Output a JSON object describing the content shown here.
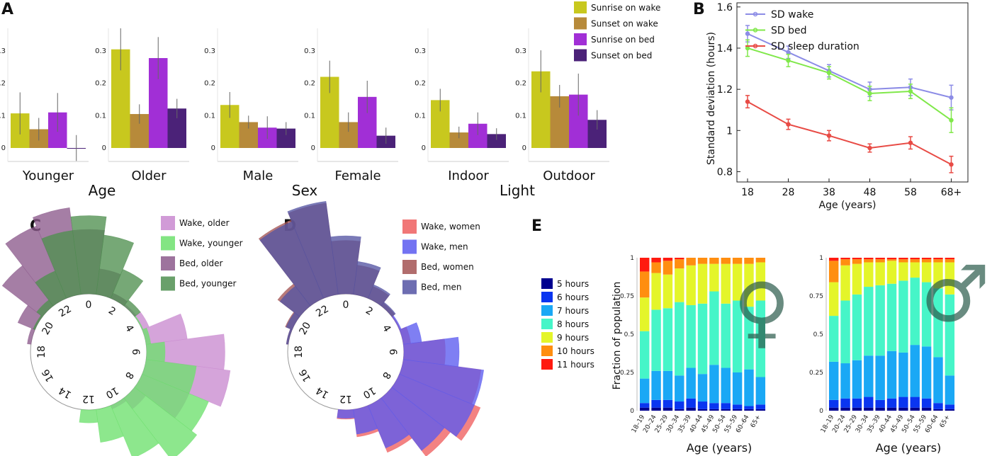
{
  "panels": {
    "A": {
      "label": "A",
      "chart_data": {
        "type": "bar",
        "yticks": [
          "0",
          "0.1",
          "0.2",
          "0.3"
        ],
        "ylim": [
          0,
          0.37
        ],
        "series_names": [
          "Sunrise on wake",
          "Sunset on wake",
          "Sunrise on bed",
          "Sunset on bed"
        ],
        "colors": [
          "#c8c81e",
          "#b78a3a",
          "#a12fd6",
          "#4b2278"
        ],
        "groups": [
          {
            "name": "Age",
            "categories": [
              {
                "label": "Younger",
                "values": [
                  0.107,
                  0.058,
                  0.11,
                  0.0
                ],
                "err": [
                  0.065,
                  0.035,
                  0.06,
                  0.04
                ]
              },
              {
                "label": "Older",
                "values": [
                  0.305,
                  0.105,
                  0.278,
                  0.122
                ],
                "err": [
                  0.065,
                  0.03,
                  0.065,
                  0.03
                ]
              }
            ]
          },
          {
            "name": "Sex",
            "categories": [
              {
                "label": "Male",
                "values": [
                  0.133,
                  0.08,
                  0.063,
                  0.06
                ],
                "err": [
                  0.04,
                  0.02,
                  0.035,
                  0.02
                ]
              },
              {
                "label": "Female",
                "values": [
                  0.22,
                  0.08,
                  0.158,
                  0.038
                ],
                "err": [
                  0.05,
                  0.03,
                  0.05,
                  0.025
                ]
              }
            ]
          },
          {
            "name": "Light",
            "categories": [
              {
                "label": "Indoor",
                "values": [
                  0.148,
                  0.048,
                  0.075,
                  0.043
                ],
                "err": [
                  0.035,
                  0.018,
                  0.035,
                  0.018
                ]
              },
              {
                "label": "Outdoor",
                "values": [
                  0.237,
                  0.16,
                  0.165,
                  0.087
                ],
                "err": [
                  0.065,
                  0.035,
                  0.065,
                  0.03
                ]
              }
            ]
          }
        ]
      }
    },
    "B": {
      "label": "B",
      "chart_data": {
        "type": "line",
        "x": [
          "18",
          "28",
          "38",
          "48",
          "58",
          "68+"
        ],
        "xlabel": "Age (years)",
        "ylabel": "Standard deviation  (hours)",
        "yticks": [
          "0.8",
          "1",
          "1.2",
          "1.4",
          "1.6"
        ],
        "ylim": [
          0.75,
          1.62
        ],
        "series": [
          {
            "name": "SD wake",
            "color": "#8c8ce6",
            "values": [
              1.47,
              1.38,
              1.29,
              1.2,
              1.21,
              1.16
            ],
            "err": [
              0.04,
              0.03,
              0.03,
              0.035,
              0.04,
              0.06
            ]
          },
          {
            "name": "SD bed",
            "color": "#80e84a",
            "values": [
              1.4,
              1.34,
              1.28,
              1.18,
              1.19,
              1.05
            ],
            "err": [
              0.04,
              0.03,
              0.03,
              0.035,
              0.035,
              0.06
            ]
          },
          {
            "name": "SD sleep duration",
            "color": "#e84b45",
            "values": [
              1.14,
              1.03,
              0.975,
              0.915,
              0.94,
              0.835
            ],
            "err": [
              0.03,
              0.025,
              0.025,
              0.02,
              0.03,
              0.04
            ]
          }
        ]
      }
    },
    "C": {
      "label": "C",
      "chart_data": {
        "type": "polar-histogram",
        "hour_labels": [
          "0",
          "2",
          "4",
          "6",
          "8",
          "10",
          "12",
          "14",
          "16",
          "18",
          "20",
          "22"
        ],
        "series": [
          {
            "name": "Wake, older",
            "color": "#c98ad0",
            "fill": "#c98ad0",
            "hours": [
              3,
              4,
              5,
              6,
              7,
              8,
              9,
              10
            ],
            "values": [
              0.02,
              0.08,
              0.45,
              0.85,
              0.92,
              0.55,
              0.15,
              0.04
            ]
          },
          {
            "name": "Wake, younger",
            "color": "#6de06d",
            "fill": "#6de06d",
            "hours": [
              4,
              5,
              6,
              7,
              8,
              9,
              10,
              11,
              12
            ],
            "values": [
              0.01,
              0.05,
              0.2,
              0.55,
              0.78,
              0.85,
              0.62,
              0.36,
              0.14
            ]
          },
          {
            "name": "Bed, older",
            "color": "#8c5a8c",
            "fill": "#8c5a8c",
            "hours": [
              19,
              20,
              21,
              22,
              23,
              0,
              1,
              2
            ],
            "values": [
              0.04,
              0.2,
              0.55,
              0.85,
              0.95,
              0.7,
              0.28,
              0.06
            ]
          },
          {
            "name": "Bed, younger",
            "color": "#4f8f50",
            "fill": "#4f8f50",
            "hours": [
              20,
              21,
              22,
              23,
              0,
              1,
              2,
              3
            ],
            "values": [
              0.02,
              0.08,
              0.32,
              0.7,
              0.85,
              0.65,
              0.34,
              0.08
            ]
          }
        ]
      }
    },
    "D": {
      "label": "D",
      "chart_data": {
        "type": "polar-histogram",
        "hour_labels": [
          "0",
          "2",
          "4",
          "6",
          "8",
          "10",
          "12",
          "14",
          "16",
          "18",
          "20",
          "22"
        ],
        "series": [
          {
            "name": "Wake, women",
            "color": "#ef5f5f",
            "fill": "#ef5f5f",
            "hours": [
              4,
              5,
              6,
              7,
              8,
              9,
              10,
              11,
              12
            ],
            "values": [
              0.01,
              0.08,
              0.45,
              0.85,
              0.95,
              0.8,
              0.55,
              0.3,
              0.1
            ]
          },
          {
            "name": "Wake, men",
            "color": "#5b5bf0",
            "fill": "#5b5bf0",
            "hours": [
              4,
              5,
              6,
              7,
              8,
              9,
              10,
              11,
              12
            ],
            "values": [
              0.02,
              0.2,
              0.6,
              0.88,
              0.88,
              0.72,
              0.5,
              0.27,
              0.09
            ]
          },
          {
            "name": "Bed, women",
            "color": "#a35454",
            "fill": "#a35454",
            "hours": [
              19,
              20,
              21,
              22,
              23,
              0,
              1,
              2,
              3
            ],
            "values": [
              0.02,
              0.08,
              0.3,
              0.92,
              1.0,
              0.58,
              0.32,
              0.14,
              0.04
            ]
          },
          {
            "name": "Bed, men",
            "color": "#5454a3",
            "fill": "#5454a3",
            "hours": [
              19,
              20,
              21,
              22,
              23,
              0,
              1,
              2,
              3
            ],
            "values": [
              0.02,
              0.07,
              0.27,
              0.9,
              1.02,
              0.63,
              0.36,
              0.16,
              0.05
            ]
          }
        ],
        "overlap_color": "#3a2a78"
      }
    },
    "E": {
      "label": "E",
      "chart_data": {
        "type": "stacked-bar",
        "categories": [
          "18–19",
          "20–24",
          "25–29",
          "30–34",
          "35–39",
          "40–44",
          "45–49",
          "50–54",
          "55–59",
          "60–64",
          "65+"
        ],
        "yticks": [
          "0",
          "0.25",
          "0.5",
          "0.75",
          "1"
        ],
        "ylabel": "Fraction of population",
        "xlabel": "Age (years)",
        "legend": [
          "5 hours",
          "6 hours",
          "7 hours",
          "8 hours",
          "9 hours",
          "10 hours",
          "11 hours"
        ],
        "colors": [
          "#00008f",
          "#0a35f0",
          "#1aa8f5",
          "#46f5c8",
          "#e4f52a",
          "#ff8e10",
          "#ff1a10"
        ],
        "charts": [
          {
            "name": "women",
            "symbol": "♀",
            "data": [
              [
                0.02,
                0.03,
                0.16,
                0.31,
                0.22,
                0.17,
                0.09
              ],
              [
                0.02,
                0.05,
                0.19,
                0.4,
                0.24,
                0.07,
                0.03
              ],
              [
                0.02,
                0.05,
                0.19,
                0.41,
                0.22,
                0.09,
                0.02
              ],
              [
                0.01,
                0.05,
                0.17,
                0.48,
                0.22,
                0.06,
                0.01
              ],
              [
                0.02,
                0.06,
                0.2,
                0.41,
                0.26,
                0.05,
                0.0
              ],
              [
                0.01,
                0.05,
                0.18,
                0.46,
                0.26,
                0.04,
                0.0
              ],
              [
                0.01,
                0.04,
                0.25,
                0.48,
                0.18,
                0.04,
                0.0
              ],
              [
                0.01,
                0.04,
                0.23,
                0.42,
                0.26,
                0.04,
                0.0
              ],
              [
                0.01,
                0.03,
                0.21,
                0.47,
                0.24,
                0.04,
                0.0
              ],
              [
                0.01,
                0.02,
                0.24,
                0.41,
                0.28,
                0.04,
                0.0
              ],
              [
                0.01,
                0.03,
                0.18,
                0.5,
                0.25,
                0.03,
                0.0
              ]
            ]
          },
          {
            "name": "men",
            "symbol": "♂",
            "data": [
              [
                0.02,
                0.05,
                0.25,
                0.3,
                0.22,
                0.14,
                0.02
              ],
              [
                0.02,
                0.06,
                0.23,
                0.41,
                0.23,
                0.04,
                0.01
              ],
              [
                0.02,
                0.06,
                0.25,
                0.43,
                0.2,
                0.03,
                0.01
              ],
              [
                0.02,
                0.07,
                0.27,
                0.45,
                0.16,
                0.02,
                0.01
              ],
              [
                0.02,
                0.05,
                0.29,
                0.46,
                0.15,
                0.02,
                0.01
              ],
              [
                0.02,
                0.06,
                0.31,
                0.44,
                0.15,
                0.01,
                0.01
              ],
              [
                0.02,
                0.07,
                0.29,
                0.47,
                0.12,
                0.02,
                0.01
              ],
              [
                0.02,
                0.07,
                0.34,
                0.44,
                0.1,
                0.02,
                0.01
              ],
              [
                0.02,
                0.06,
                0.34,
                0.42,
                0.13,
                0.02,
                0.01
              ],
              [
                0.01,
                0.04,
                0.3,
                0.45,
                0.17,
                0.02,
                0.01
              ],
              [
                0.01,
                0.03,
                0.19,
                0.53,
                0.21,
                0.02,
                0.01
              ]
            ]
          }
        ]
      }
    }
  }
}
